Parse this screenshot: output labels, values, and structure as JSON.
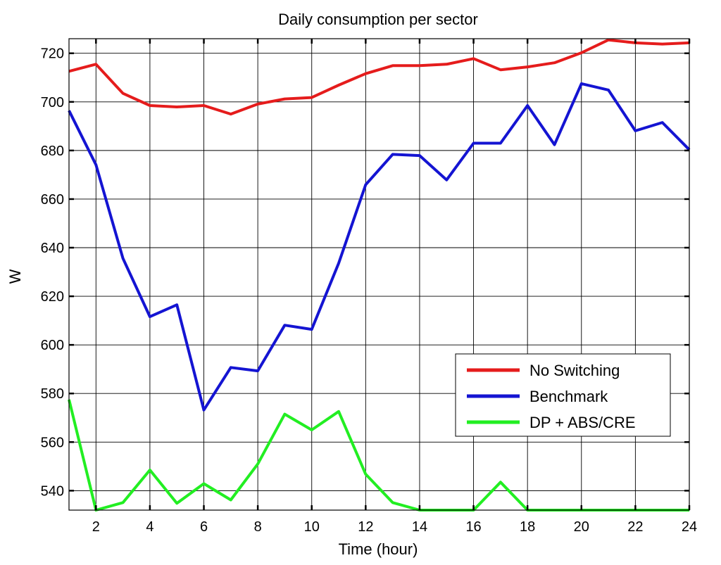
{
  "chart_data": {
    "type": "line",
    "title": "Daily consumption per sector",
    "xlabel": "Time (hour)",
    "ylabel": "W",
    "xlim": [
      1,
      24
    ],
    "ylim": [
      532,
      726
    ],
    "xticks": [
      2,
      4,
      6,
      8,
      10,
      12,
      14,
      16,
      18,
      20,
      22,
      24
    ],
    "yticks": [
      540,
      560,
      580,
      600,
      620,
      640,
      660,
      680,
      700,
      720
    ],
    "grid": true,
    "legend_position": "lower-right",
    "x": [
      1,
      2,
      3,
      4,
      5,
      6,
      7,
      8,
      9,
      10,
      11,
      12,
      13,
      14,
      15,
      16,
      17,
      18,
      19,
      20,
      21,
      22,
      23,
      24
    ],
    "series": [
      {
        "name": "No Switching",
        "color": "#e51c1c",
        "values": [
          712.6,
          715.5,
          703.5,
          698.5,
          697.9,
          698.5,
          695,
          699.1,
          701.2,
          701.8,
          706.9,
          711.6,
          714.9,
          714.9,
          715.5,
          717.8,
          713.2,
          714.4,
          716.1,
          720.2,
          725.5,
          724.3,
          723.8,
          724.3
        ]
      },
      {
        "name": "Benchmark",
        "color": "#1414d2",
        "values": [
          696.4,
          674.1,
          635.6,
          611.6,
          616.5,
          573.2,
          590.7,
          589.3,
          608.1,
          606.4,
          633.6,
          665.9,
          678.4,
          677.9,
          667.9,
          683,
          683,
          698.5,
          682.4,
          707.5,
          704.9,
          688.1,
          691.5,
          680.3
        ]
      },
      {
        "name": "DP + ABS/CRE",
        "color": "#22ee22",
        "values": [
          577.5,
          532,
          535.1,
          548.5,
          534.8,
          542.9,
          536.2,
          551,
          571.5,
          565,
          572.6,
          546.8,
          535.1,
          532,
          532,
          532,
          543.5,
          532,
          532,
          532,
          532,
          532,
          532,
          532
        ]
      }
    ]
  }
}
